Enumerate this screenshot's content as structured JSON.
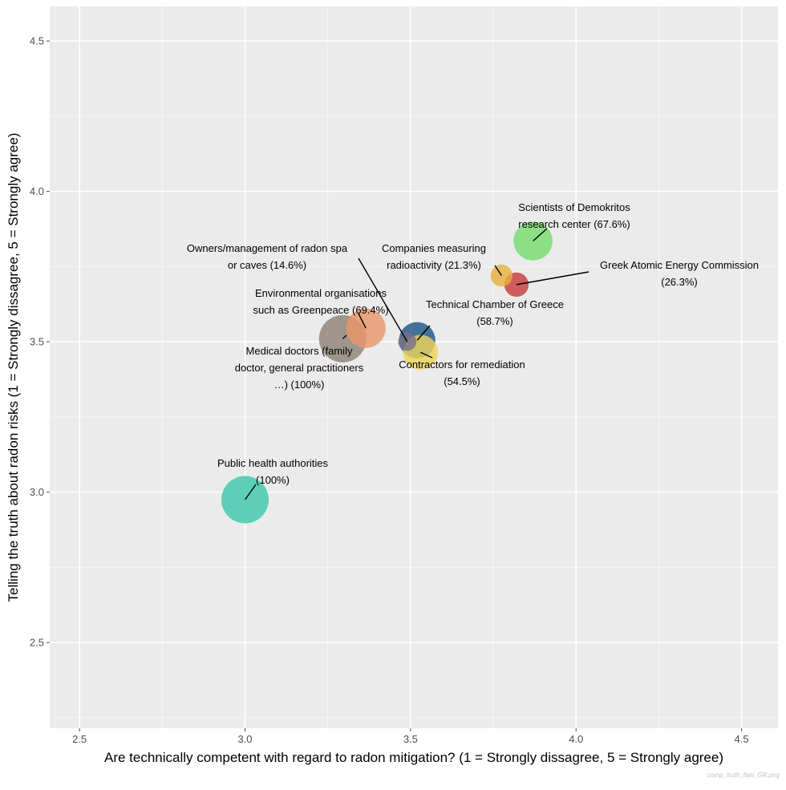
{
  "chart_data": {
    "type": "scatter",
    "title": "",
    "xlabel": "Are technically competent with regard to radon mitigation? (1 = Strongly dissagree, 5 = Strongly agree)",
    "ylabel": "Telling the truth about radon risks (1 = Strongly dissagree, 5 = Strongly agree)",
    "xlim": [
      2.41,
      4.61
    ],
    "ylim": [
      2.215,
      4.615
    ],
    "x_ticks": [
      "2.5",
      "3.0",
      "3.5",
      "4.0",
      "4.5"
    ],
    "y_ticks": [
      "2.5",
      "3.0",
      "3.5",
      "4.0",
      "4.5"
    ],
    "grid": true,
    "legend": "none",
    "credit": "comp_truth_fam_GR.png",
    "points": [
      {
        "name": "Public health authorities (100%)",
        "label_lines": [
          "Public health authorities",
          "(100%)"
        ],
        "x": 3.0,
        "y": 2.975,
        "size_pct": 100,
        "color": "#3cc8aa"
      },
      {
        "name": "Medical doctors (family doctor, general practitioners …) (100%)",
        "label_lines": [
          "Medical doctors (family",
          "doctor, general practitioners",
          "…) (100%)"
        ],
        "x": 3.295,
        "y": 3.51,
        "size_pct": 100,
        "color": "#8c8278"
      },
      {
        "name": "Environmental organisations such as Greenpeace (69.4%)",
        "label_lines": [
          "Environmental organisations",
          "such as Greenpeace (69.4%)"
        ],
        "x": 3.365,
        "y": 3.545,
        "size_pct": 69.4,
        "color": "#e8966a"
      },
      {
        "name": "Owners/management of radon spa or caves (14.6%)",
        "label_lines": [
          "Owners/management of radon spa",
          "or caves (14.6%)"
        ],
        "x": 3.49,
        "y": 3.5,
        "size_pct": 14.6,
        "color": "#7a6f8a"
      },
      {
        "name": "Contractors for remediation (54.5%)",
        "label_lines": [
          "Contractors for remediation",
          "(54.5%)"
        ],
        "x": 3.53,
        "y": 3.465,
        "size_pct": 54.5,
        "color": "#ecd45a"
      },
      {
        "name": "Technical Chamber of Greece (58.7%)",
        "label_lines": [
          "Technical Chamber of Greece",
          "(58.7%)"
        ],
        "x": 3.52,
        "y": 3.505,
        "size_pct": 58.7,
        "color": "#1e5687"
      },
      {
        "name": "Companies measuring radioactivity (21.3%)",
        "label_lines": [
          "Companies measuring",
          "radioactivity (21.3%)"
        ],
        "x": 3.775,
        "y": 3.72,
        "size_pct": 21.3,
        "color": "#e8b040"
      },
      {
        "name": "Greek Atomic Energy Commission (26.3%)",
        "label_lines": [
          "Greek Atomic Energy Commission",
          "(26.3%)"
        ],
        "x": 3.82,
        "y": 3.69,
        "size_pct": 26.3,
        "color": "#c83c3c"
      },
      {
        "name": "Scientists of Demokritos research center (67.6%)",
        "label_lines": [
          "Scientists of Demokritos",
          "research center (67.6%)"
        ],
        "x": 3.87,
        "y": 3.835,
        "size_pct": 67.6,
        "color": "#78dc6e"
      }
    ]
  }
}
